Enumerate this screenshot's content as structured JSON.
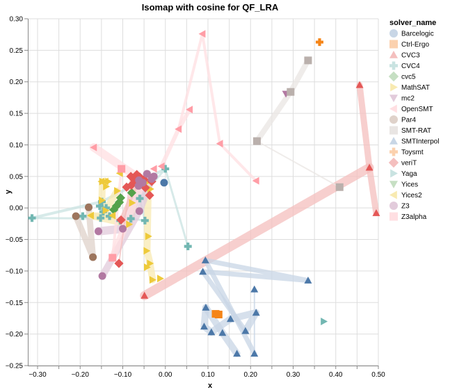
{
  "chart_data": {
    "type": "scatter",
    "title": "Isomap with cosine for QF_LRA",
    "xlabel": "x",
    "ylabel": "y",
    "xlim": [
      -0.32,
      0.5
    ],
    "ylim": [
      -0.25,
      0.3
    ],
    "grid": true,
    "x_ticks": [
      "-0.30",
      "-0.20",
      "-0.10",
      "0.00",
      "0.10",
      "0.20",
      "0.30",
      "0.40",
      "0.50"
    ],
    "x_tick_values": [
      -0.3,
      -0.2,
      -0.1,
      0.0,
      0.1,
      0.2,
      0.3,
      0.4,
      0.5
    ],
    "x_grid_step": 0.05,
    "y_ticks": [
      "0.30",
      "0.25",
      "0.20",
      "0.15",
      "0.10",
      "0.05",
      "0.00",
      "-0.05",
      "-0.10",
      "-0.15",
      "-0.20",
      "-0.25"
    ],
    "y_tick_values": [
      0.3,
      0.25,
      0.2,
      0.15,
      0.1,
      0.05,
      0.0,
      -0.05,
      -0.1,
      -0.15,
      -0.2,
      -0.25
    ],
    "legend_title": "solver_name",
    "legend_position": "right",
    "series": [
      {
        "name": "Barcelogic",
        "shape": "circle",
        "color": "#4c78a8",
        "light": "#c8d6e6",
        "points": [
          [
            -0.003,
            0.04
          ]
        ]
      },
      {
        "name": "Ctrl-Ergo",
        "shape": "square",
        "color": "#f58518",
        "light": "#fbd1ae",
        "points": [
          [
            0.118,
            -0.168
          ],
          [
            0.125,
            -0.169
          ]
        ]
      },
      {
        "name": "CVC3",
        "shape": "triangle-up",
        "color": "#e45756",
        "light": "#f4bfbe",
        "points": [
          [
            0.456,
            0.195
          ],
          [
            0.479,
            0.064
          ],
          [
            0.495,
            -0.008
          ],
          [
            -0.049,
            -0.139
          ]
        ]
      },
      {
        "name": "CVC4",
        "shape": "cross",
        "color": "#72b7b2",
        "light": "#c9e3e1",
        "points": [
          [
            0.0,
            0.062
          ],
          [
            0.053,
            -0.061
          ],
          [
            -0.313,
            -0.016
          ],
          [
            -0.149,
            0.01
          ],
          [
            -0.154,
            0.003
          ],
          [
            -0.139,
            0.0
          ],
          [
            -0.146,
            -0.006
          ],
          [
            -0.131,
            -0.013
          ],
          [
            -0.194,
            -0.013
          ],
          [
            -0.152,
            -0.016
          ],
          [
            -0.106,
            -0.02
          ],
          [
            -0.081,
            -0.017
          ],
          [
            -0.06,
            0.015
          ],
          [
            -0.048,
            -0.02
          ]
        ]
      },
      {
        "name": "cvc5",
        "shape": "diamond",
        "color": "#54a24b",
        "light": "#c6dfc3",
        "points": [
          [
            -0.105,
            0.016
          ],
          [
            -0.108,
            0.009
          ],
          [
            -0.115,
            0.003
          ],
          [
            -0.121,
            -0.003
          ],
          [
            -0.079,
            0.024
          ]
        ]
      },
      {
        "name": "MathSAT",
        "shape": "triangle-right",
        "color": "#eeca3b",
        "light": "#f8eab1",
        "points": [
          [
            -0.113,
            0.027
          ],
          [
            -0.148,
            0.042
          ],
          [
            -0.134,
            0.042
          ],
          [
            -0.139,
            0.034
          ],
          [
            -0.149,
            0.012
          ],
          [
            -0.14,
            -0.004
          ],
          [
            -0.085,
            -0.026
          ],
          [
            -0.04,
            0.042
          ],
          [
            -0.035,
            0.03
          ],
          [
            -0.04,
            -0.045
          ],
          [
            -0.044,
            -0.068
          ],
          [
            -0.036,
            -0.088
          ],
          [
            -0.043,
            -0.094
          ],
          [
            -0.03,
            -0.114
          ],
          [
            -0.012,
            -0.112
          ],
          [
            -0.06,
            0.043
          ],
          [
            -0.078,
            0.008
          ]
        ]
      },
      {
        "name": "mc2",
        "shape": "triangle-down",
        "color": "#b279a2",
        "light": "#e2cbdb",
        "points": [
          [
            0.283,
            0.181
          ]
        ]
      },
      {
        "name": "OpenSMT",
        "shape": "triangle-left",
        "color": "#ff9da6",
        "light": "#ffdfe2",
        "points": [
          [
            0.087,
            0.276
          ],
          [
            0.057,
            0.156
          ],
          [
            0.031,
            0.125
          ],
          [
            0.128,
            0.102
          ],
          [
            -0.168,
            0.096
          ],
          [
            0.213,
            0.043
          ],
          [
            -0.009,
            0.066
          ],
          [
            -0.053,
            0.043
          ],
          [
            -0.027,
            0.062
          ]
        ]
      },
      {
        "name": "Par4",
        "shape": "circle",
        "color": "#9d755d",
        "light": "#dfd2ca",
        "points": [
          [
            -0.21,
            -0.013
          ],
          [
            -0.18,
            0.001
          ],
          [
            -0.17,
            -0.078
          ]
        ]
      },
      {
        "name": "SMT-RAT",
        "shape": "square",
        "color": "#bab0ac",
        "light": "#e9e5e3",
        "points": [
          [
            0.335,
            0.234
          ],
          [
            0.294,
            0.184
          ],
          [
            0.215,
            0.106
          ],
          [
            0.409,
            0.033
          ]
        ]
      },
      {
        "name": "SMTInterpol",
        "shape": "triangle-up",
        "color": "#4c78a8",
        "light": "#c8d6e6",
        "points": [
          [
            0.094,
            -0.083
          ],
          [
            0.088,
            -0.101
          ],
          [
            0.335,
            -0.115
          ],
          [
            0.209,
            -0.129
          ],
          [
            0.095,
            -0.158
          ],
          [
            0.213,
            -0.166
          ],
          [
            0.091,
            -0.188
          ],
          [
            0.153,
            -0.176
          ],
          [
            0.108,
            -0.197
          ],
          [
            0.134,
            -0.198
          ],
          [
            0.188,
            -0.195
          ],
          [
            0.168,
            -0.231
          ],
          [
            0.209,
            -0.231
          ]
        ]
      },
      {
        "name": "Toysmt",
        "shape": "cross",
        "color": "#f58518",
        "light": "#fbd1ae",
        "points": [
          [
            0.362,
            0.263
          ]
        ]
      },
      {
        "name": "veriT",
        "shape": "diamond",
        "color": "#e45756",
        "light": "#f4bfbe",
        "points": [
          [
            -0.081,
            0.05
          ],
          [
            -0.067,
            0.053
          ],
          [
            -0.06,
            0.049
          ],
          [
            -0.072,
            0.044
          ],
          [
            -0.05,
            0.045
          ],
          [
            -0.06,
            0.04
          ],
          [
            -0.047,
            0.032
          ],
          [
            -0.08,
            0.036
          ],
          [
            -0.091,
            0.033
          ],
          [
            -0.032,
            0.042
          ],
          [
            -0.037,
            0.02
          ],
          [
            -0.104,
            -0.019
          ],
          [
            -0.109,
            -0.088
          ]
        ]
      },
      {
        "name": "Yaga",
        "shape": "triangle-right",
        "color": "#72b7b2",
        "light": "#c9e3e1",
        "points": [
          [
            0.372,
            -0.18
          ]
        ]
      },
      {
        "name": "Yices",
        "shape": "triangle-down",
        "color": "#54a24b",
        "light": "#c6dfc3",
        "points": []
      },
      {
        "name": "Yices2",
        "shape": "triangle-left",
        "color": "#eeca3b",
        "light": "#f8eab1",
        "points": [
          [
            -0.141,
            0.042
          ],
          [
            -0.15,
            0.042
          ],
          [
            -0.175,
            -0.012
          ],
          [
            -0.124,
            -0.012
          ],
          [
            -0.107,
            0.055
          ]
        ]
      },
      {
        "name": "Z3",
        "shape": "circle",
        "color": "#b279a2",
        "light": "#e2cbdb",
        "points": [
          [
            -0.043,
            0.054
          ],
          [
            -0.027,
            0.05
          ],
          [
            -0.032,
            0.046
          ],
          [
            -0.053,
            0.04
          ],
          [
            -0.063,
            0.035
          ],
          [
            -0.062,
            0.044
          ],
          [
            -0.1,
            -0.033
          ],
          [
            -0.061,
            -0.005
          ],
          [
            -0.157,
            -0.037
          ],
          [
            -0.148,
            -0.108
          ]
        ]
      },
      {
        "name": "Z3alpha",
        "shape": "square",
        "color": "#ff9da6",
        "light": "#ffdfe2",
        "points": [
          [
            -0.103,
            0.062
          ],
          [
            -0.124,
            -0.079
          ]
        ]
      }
    ],
    "trails": [
      {
        "series": "CVC3",
        "width": 9,
        "path": [
          [
            0.456,
            0.195
          ],
          [
            0.479,
            0.064
          ],
          [
            0.495,
            -0.008
          ]
        ]
      },
      {
        "series": "CVC3",
        "width": 13,
        "path": [
          [
            0.479,
            0.064
          ],
          [
            -0.049,
            -0.139
          ]
        ]
      },
      {
        "series": "SMT-RAT",
        "width": 8,
        "path": [
          [
            0.335,
            0.234
          ],
          [
            0.294,
            0.184
          ],
          [
            0.215,
            0.106
          ]
        ]
      },
      {
        "series": "SMT-RAT",
        "width": 2,
        "path": [
          [
            0.215,
            0.106
          ],
          [
            0.409,
            0.033
          ]
        ]
      },
      {
        "series": "OpenSMT",
        "width": 6,
        "path": [
          [
            -0.009,
            0.066
          ],
          [
            0.031,
            0.125
          ],
          [
            0.057,
            0.156
          ]
        ]
      },
      {
        "series": "OpenSMT",
        "width": 4,
        "path": [
          [
            0.031,
            0.125
          ],
          [
            0.087,
            0.276
          ],
          [
            0.128,
            0.102
          ],
          [
            0.213,
            0.043
          ]
        ]
      },
      {
        "series": "OpenSMT",
        "width": 12,
        "path": [
          [
            -0.168,
            0.096
          ],
          [
            -0.053,
            0.043
          ]
        ]
      },
      {
        "series": "SMTInterpol",
        "width": 7,
        "path": [
          [
            0.094,
            -0.083
          ],
          [
            0.335,
            -0.115
          ],
          [
            0.088,
            -0.101
          ],
          [
            0.188,
            -0.195
          ]
        ]
      },
      {
        "series": "SMTInterpol",
        "width": 7,
        "path": [
          [
            0.094,
            -0.083
          ],
          [
            0.209,
            -0.231
          ]
        ]
      },
      {
        "series": "SMTInterpol",
        "width": 10,
        "path": [
          [
            0.095,
            -0.158
          ],
          [
            0.091,
            -0.188
          ],
          [
            0.108,
            -0.197
          ],
          [
            0.153,
            -0.176
          ],
          [
            0.213,
            -0.166
          ],
          [
            0.188,
            -0.195
          ]
        ]
      },
      {
        "series": "SMTInterpol",
        "width": 10,
        "path": [
          [
            0.095,
            -0.158
          ],
          [
            0.134,
            -0.198
          ],
          [
            0.168,
            -0.231
          ]
        ]
      },
      {
        "series": "SMTInterpol",
        "width": 2,
        "path": [
          [
            0.209,
            -0.129
          ],
          [
            0.209,
            -0.231
          ]
        ]
      },
      {
        "series": "CVC4",
        "width": 3,
        "path": [
          [
            -0.313,
            -0.016
          ],
          [
            -0.081,
            -0.017
          ],
          [
            -0.048,
            -0.02
          ],
          [
            -0.06,
            0.015
          ],
          [
            0.0,
            0.062
          ],
          [
            0.053,
            -0.061
          ]
        ]
      },
      {
        "series": "CVC4",
        "width": 4,
        "path": [
          [
            -0.313,
            -0.016
          ],
          [
            -0.149,
            0.01
          ],
          [
            0.0,
            0.062
          ]
        ]
      },
      {
        "series": "Par4",
        "width": 9,
        "path": [
          [
            -0.21,
            -0.013
          ],
          [
            -0.17,
            -0.078
          ],
          [
            -0.18,
            0.001
          ]
        ]
      },
      {
        "series": "MathSAT",
        "width": 10,
        "path": [
          [
            -0.04,
            0.042
          ],
          [
            -0.043,
            -0.068
          ],
          [
            -0.036,
            -0.088
          ],
          [
            -0.03,
            -0.114
          ]
        ]
      },
      {
        "series": "MathSAT",
        "width": 10,
        "path": [
          [
            -0.148,
            0.042
          ],
          [
            -0.149,
            0.012
          ],
          [
            -0.14,
            -0.004
          ],
          [
            -0.113,
            0.027
          ]
        ]
      },
      {
        "series": "MathSAT",
        "width": 10,
        "path": [
          [
            -0.175,
            -0.012
          ],
          [
            -0.085,
            -0.026
          ],
          [
            -0.06,
            0.043
          ]
        ]
      },
      {
        "series": "Z3",
        "width": 12,
        "path": [
          [
            -0.157,
            -0.037
          ],
          [
            -0.1,
            -0.033
          ],
          [
            -0.043,
            0.054
          ]
        ]
      },
      {
        "series": "Z3",
        "width": 10,
        "path": [
          [
            -0.148,
            -0.108
          ],
          [
            -0.061,
            -0.005
          ],
          [
            -0.032,
            0.046
          ]
        ]
      },
      {
        "series": "Z3alpha",
        "width": 4,
        "path": [
          [
            -0.103,
            0.062
          ],
          [
            -0.124,
            -0.079
          ]
        ]
      },
      {
        "series": "Z3alpha",
        "width": 10,
        "path": [
          [
            -0.124,
            -0.079
          ],
          [
            -0.053,
            0.043
          ]
        ]
      },
      {
        "series": "veriT",
        "width": 2,
        "path": [
          [
            -0.109,
            -0.088
          ],
          [
            -0.081,
            0.05
          ]
        ]
      },
      {
        "series": "veriT",
        "width": 6,
        "path": [
          [
            -0.104,
            -0.019
          ],
          [
            -0.06,
            0.049
          ]
        ]
      },
      {
        "series": "Yices2",
        "width": 9,
        "path": [
          [
            -0.175,
            -0.012
          ],
          [
            -0.124,
            -0.012
          ]
        ]
      }
    ]
  }
}
